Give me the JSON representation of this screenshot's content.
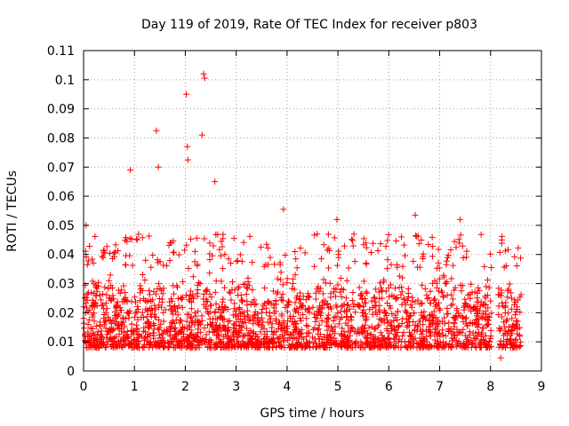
{
  "chart_data": {
    "type": "scatter",
    "title": "Day 119 of 2019, Rate Of TEC Index for receiver p803",
    "xlabel": "GPS time / hours",
    "ylabel": "ROTI / TECUs",
    "xlim": [
      0,
      9
    ],
    "ylim": [
      0,
      0.11
    ],
    "x_ticks": [
      "0",
      "1",
      "2",
      "3",
      "4",
      "5",
      "6",
      "7",
      "8",
      "9"
    ],
    "y_ticks": [
      "0",
      "0.01",
      "0.02",
      "0.03",
      "0.04",
      "0.05",
      "0.06",
      "0.07",
      "0.08",
      "0.09",
      "0.1",
      "0.11"
    ],
    "grid": true,
    "marker": "+",
    "series_color": "#ff0000",
    "data_span_hours": [
      0,
      8.6
    ],
    "typical_range": [
      0.008,
      0.035
    ],
    "notable_points": [
      {
        "x": 0.05,
        "y": 0.05
      },
      {
        "x": 0.92,
        "y": 0.069
      },
      {
        "x": 1.43,
        "y": 0.0825
      },
      {
        "x": 1.47,
        "y": 0.07
      },
      {
        "x": 2.02,
        "y": 0.095
      },
      {
        "x": 2.04,
        "y": 0.077
      },
      {
        "x": 2.05,
        "y": 0.0725
      },
      {
        "x": 2.33,
        "y": 0.081
      },
      {
        "x": 2.36,
        "y": 0.102
      },
      {
        "x": 2.38,
        "y": 0.1005
      },
      {
        "x": 2.58,
        "y": 0.065
      },
      {
        "x": 3.93,
        "y": 0.0555
      },
      {
        "x": 4.98,
        "y": 0.052
      },
      {
        "x": 6.52,
        "y": 0.0535
      },
      {
        "x": 7.4,
        "y": 0.052
      },
      {
        "x": 8.2,
        "y": 0.0045
      },
      {
        "x": 8.22,
        "y": 0.045
      }
    ]
  }
}
